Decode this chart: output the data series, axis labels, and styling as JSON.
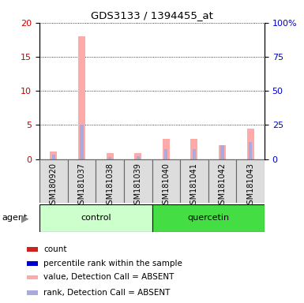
{
  "title": "GDS3133 / 1394455_at",
  "samples": [
    "GSM180920",
    "GSM181037",
    "GSM181038",
    "GSM181039",
    "GSM181040",
    "GSM181041",
    "GSM181042",
    "GSM181043"
  ],
  "groups": [
    "control",
    "control",
    "control",
    "control",
    "quercetin",
    "quercetin",
    "quercetin",
    "quercetin"
  ],
  "group_labels": [
    "control",
    "quercetin"
  ],
  "ctrl_color_light": "#ccffcc",
  "ctrl_color": "#ccffcc",
  "quer_color": "#44dd44",
  "bar_colors_present_value": "#cc2222",
  "bar_colors_present_rank": "#0000cc",
  "bar_colors_absent_value": "#ffaaaa",
  "bar_colors_absent_rank": "#aaaadd",
  "value_data": [
    1.1,
    18.0,
    0.9,
    0.9,
    3.0,
    3.0,
    2.0,
    4.5
  ],
  "rank_data": [
    0.6,
    5.0,
    0.3,
    0.4,
    1.5,
    1.5,
    2.0,
    2.5
  ],
  "detection_call": [
    "ABSENT",
    "ABSENT",
    "ABSENT",
    "ABSENT",
    "ABSENT",
    "ABSENT",
    "ABSENT",
    "ABSENT"
  ],
  "ylim_left": [
    0,
    20
  ],
  "ylim_right": [
    0,
    100
  ],
  "yticks_left": [
    0,
    5,
    10,
    15,
    20
  ],
  "yticks_right": [
    0,
    25,
    50,
    75,
    100
  ],
  "ytick_labels_right": [
    "0",
    "25",
    "50",
    "75",
    "100%"
  ],
  "ylabel_left_color": "#cc0000",
  "ylabel_right_color": "#0000cc",
  "agent_label": "agent",
  "legend_items": [
    {
      "label": "count",
      "color": "#cc2222"
    },
    {
      "label": "percentile rank within the sample",
      "color": "#0000cc"
    },
    {
      "label": "value, Detection Call = ABSENT",
      "color": "#ffaaaa"
    },
    {
      "label": "rank, Detection Call = ABSENT",
      "color": "#aaaadd"
    }
  ]
}
